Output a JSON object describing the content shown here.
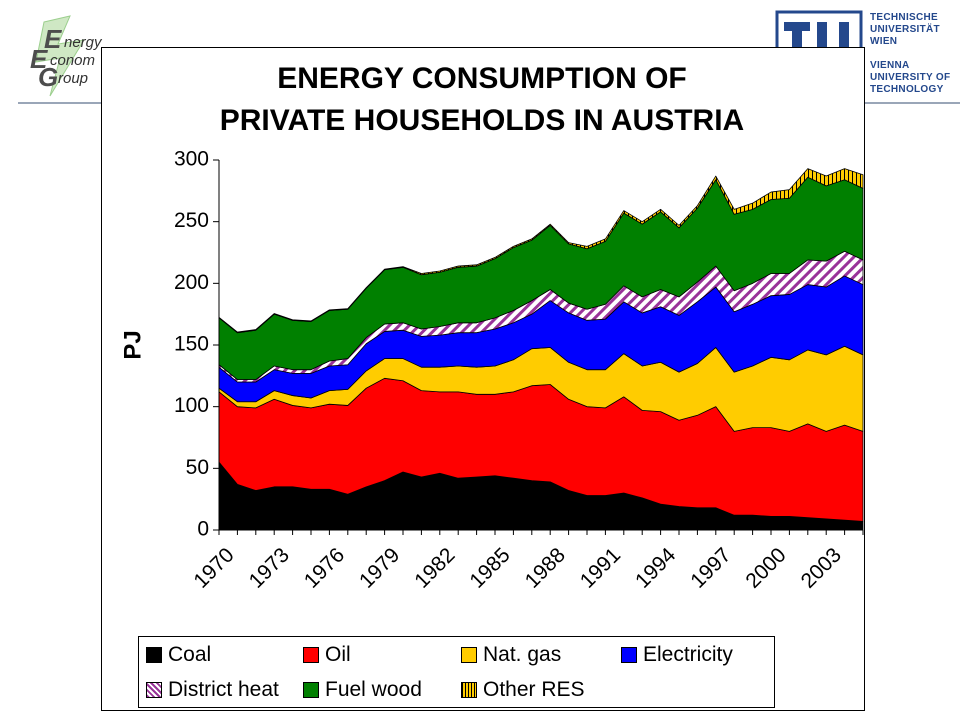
{
  "header": {
    "eeg_logo_lines": [
      "nergy",
      "conom",
      "roup"
    ],
    "eeg_logo_letters": [
      "E",
      "E",
      "G"
    ],
    "tu_logo_lines": [
      "TECHNISCHE",
      "UNIVERSITÄT",
      "WIEN",
      "VIENNA",
      "UNIVERSITY OF",
      "TECHNOLOGY"
    ]
  },
  "chart_data": {
    "type": "area",
    "title": "ENERGY CONSUMPTION OF\nPRIVATE HOUSEHOLDS IN AUSTRIA",
    "title_lines": [
      "ENERGY CONSUMPTION OF",
      "PRIVATE HOUSEHOLDS IN AUSTRIA"
    ],
    "ylabel": "PJ",
    "xlabel": "",
    "ylim": [
      0,
      300
    ],
    "yticks": [
      0,
      50,
      100,
      150,
      200,
      250,
      300
    ],
    "x": [
      1970,
      1971,
      1972,
      1973,
      1974,
      1975,
      1976,
      1977,
      1978,
      1979,
      1980,
      1981,
      1982,
      1983,
      1984,
      1985,
      1986,
      1987,
      1988,
      1989,
      1990,
      1991,
      1992,
      1993,
      1994,
      1995,
      1996,
      1997,
      1998,
      1999,
      2000,
      2001,
      2002,
      2003,
      2004,
      2005
    ],
    "xtick_labels": [
      "1970",
      "1973",
      "1976",
      "1979",
      "1982",
      "1985",
      "1988",
      "1991",
      "1994",
      "1997",
      "2000",
      "2003"
    ],
    "stacked": true,
    "grid": false,
    "legend_position": "bottom",
    "series": [
      {
        "name": "Coal",
        "color": "#000000",
        "pattern": "solid",
        "values": [
          55,
          37,
          32,
          35,
          35,
          33,
          33,
          29,
          35,
          40,
          47,
          43,
          46,
          42,
          43,
          44,
          42,
          40,
          39,
          32,
          28,
          28,
          30,
          26,
          21,
          19,
          18,
          18,
          12,
          12,
          11,
          11,
          10,
          9,
          8,
          7
        ]
      },
      {
        "name": "Oil",
        "color": "#ff0000",
        "pattern": "solid",
        "values": [
          57,
          63,
          67,
          71,
          66,
          66,
          69,
          72,
          80,
          83,
          74,
          70,
          66,
          70,
          67,
          66,
          70,
          77,
          79,
          74,
          72,
          71,
          78,
          71,
          75,
          70,
          75,
          82,
          68,
          71,
          72,
          69,
          76,
          71,
          77,
          73
        ]
      },
      {
        "name": "Nat. gas",
        "color": "#ffcc00",
        "pattern": "solid",
        "values": [
          3,
          4,
          5,
          7,
          8,
          8,
          11,
          13,
          14,
          16,
          18,
          19,
          20,
          21,
          22,
          23,
          26,
          30,
          30,
          30,
          30,
          31,
          35,
          36,
          40,
          39,
          42,
          48,
          48,
          50,
          57,
          58,
          60,
          62,
          64,
          62
        ]
      },
      {
        "name": "Electricity",
        "color": "#0000ff",
        "pattern": "solid",
        "values": [
          17,
          16,
          16,
          17,
          18,
          20,
          20,
          20,
          22,
          22,
          23,
          25,
          26,
          27,
          28,
          30,
          30,
          28,
          38,
          40,
          40,
          41,
          42,
          43,
          45,
          46,
          50,
          49,
          49,
          50,
          50,
          53,
          53,
          55,
          57,
          57
        ]
      },
      {
        "name": "District heat",
        "color": "#993399",
        "pattern": "hatch",
        "values": [
          2,
          2,
          2,
          3,
          3,
          3,
          4,
          5,
          5,
          6,
          6,
          6,
          7,
          8,
          8,
          9,
          10,
          11,
          9,
          8,
          9,
          12,
          13,
          13,
          14,
          15,
          16,
          17,
          17,
          17,
          18,
          17,
          20,
          21,
          20,
          20
        ]
      },
      {
        "name": "Fuel wood",
        "color": "#008000",
        "pattern": "solid",
        "values": [
          38,
          38,
          40,
          42,
          40,
          39,
          41,
          40,
          40,
          44,
          45,
          44,
          44,
          45,
          46,
          48,
          51,
          49,
          52,
          48,
          49,
          51,
          59,
          59,
          63,
          56,
          60,
          70,
          62,
          60,
          60,
          61,
          67,
          61,
          58,
          58
        ]
      },
      {
        "name": "Other RES",
        "color": "#ffcc00",
        "pattern": "vlines",
        "values": [
          0.5,
          0.5,
          0.5,
          0.5,
          0.5,
          0.5,
          0.5,
          0.5,
          0.5,
          0.5,
          0.5,
          1,
          1,
          1,
          1,
          1,
          1,
          1,
          1,
          1,
          2,
          2,
          2,
          2,
          2,
          2,
          2,
          3,
          4,
          5,
          6,
          7,
          7,
          8,
          9,
          11
        ]
      }
    ]
  }
}
